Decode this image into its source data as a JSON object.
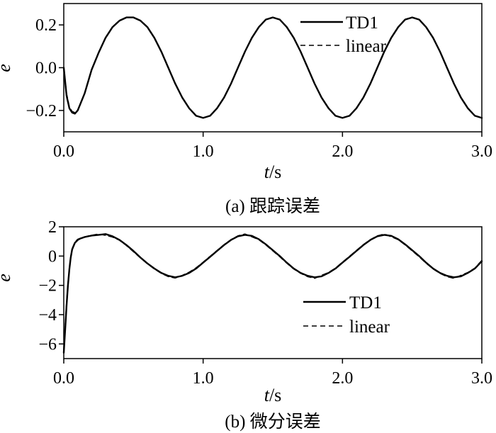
{
  "chart_data": [
    {
      "type": "line",
      "caption": "(a) 跟踪误差",
      "xlabel_italic": "t",
      "xlabel_rest": "/s",
      "ylabel": "e",
      "xlim": [
        0.0,
        3.0
      ],
      "ylim": [
        -0.3,
        0.3
      ],
      "xticks": [
        {
          "v": 0.0,
          "label": "0.0"
        },
        {
          "v": 1.0,
          "label": "1.0"
        },
        {
          "v": 2.0,
          "label": "2.0"
        },
        {
          "v": 3.0,
          "label": "3.0"
        }
      ],
      "yticks": [
        {
          "v": 0.2,
          "label": "0.2"
        },
        {
          "v": 0.0,
          "label": "0.0"
        },
        {
          "v": -0.2,
          "label": "−0.2"
        }
      ],
      "legend_position": "top-right",
      "series": [
        {
          "name": "TD1",
          "style": "solid",
          "color": "#000000",
          "x": [
            0.0,
            0.02,
            0.04,
            0.06,
            0.08,
            0.1,
            0.15,
            0.2,
            0.25,
            0.3,
            0.35,
            0.4,
            0.45,
            0.5,
            0.55,
            0.6,
            0.65,
            0.7,
            0.75,
            0.8,
            0.85,
            0.9,
            0.95,
            1.0,
            1.05,
            1.1,
            1.15,
            1.2,
            1.25,
            1.3,
            1.35,
            1.4,
            1.45,
            1.5,
            1.55,
            1.6,
            1.65,
            1.7,
            1.75,
            1.8,
            1.85,
            1.9,
            1.95,
            2.0,
            2.05,
            2.1,
            2.15,
            2.2,
            2.25,
            2.3,
            2.35,
            2.4,
            2.45,
            2.5,
            2.55,
            2.6,
            2.65,
            2.7,
            2.75,
            2.8,
            2.85,
            2.9,
            2.95,
            3.0
          ],
          "y": [
            0.0,
            -0.13,
            -0.19,
            -0.21,
            -0.215,
            -0.2,
            -0.12,
            -0.01,
            0.07,
            0.14,
            0.19,
            0.22,
            0.235,
            0.235,
            0.22,
            0.19,
            0.14,
            0.075,
            0.0,
            -0.075,
            -0.14,
            -0.19,
            -0.225,
            -0.235,
            -0.225,
            -0.19,
            -0.14,
            -0.075,
            0.0,
            0.075,
            0.14,
            0.19,
            0.225,
            0.235,
            0.225,
            0.19,
            0.14,
            0.075,
            0.0,
            -0.075,
            -0.14,
            -0.19,
            -0.225,
            -0.235,
            -0.225,
            -0.19,
            -0.14,
            -0.075,
            0.0,
            0.075,
            0.14,
            0.19,
            0.225,
            0.235,
            0.225,
            0.19,
            0.14,
            0.075,
            0.0,
            -0.075,
            -0.14,
            -0.19,
            -0.225,
            -0.235
          ]
        },
        {
          "name": "linear",
          "style": "dashed",
          "color": "#000000",
          "x": [
            0.0,
            0.02,
            0.04,
            0.06,
            0.08,
            0.1,
            0.15,
            0.2,
            0.25,
            0.3,
            0.35,
            0.4,
            0.45,
            0.5,
            0.55,
            0.6,
            0.65,
            0.7,
            0.75,
            0.8,
            0.85,
            0.9,
            0.95,
            1.0,
            1.05,
            1.1,
            1.15,
            1.2,
            1.25,
            1.3,
            1.35,
            1.4,
            1.45,
            1.5,
            1.55,
            1.6,
            1.65,
            1.7,
            1.75,
            1.8,
            1.85,
            1.9,
            1.95,
            2.0,
            2.05,
            2.1,
            2.15,
            2.2,
            2.25,
            2.3,
            2.35,
            2.4,
            2.45,
            2.5,
            2.55,
            2.6,
            2.65,
            2.7,
            2.75,
            2.8,
            2.85,
            2.9,
            2.95,
            3.0
          ],
          "y": [
            0.0,
            -0.12,
            -0.185,
            -0.205,
            -0.21,
            -0.198,
            -0.118,
            -0.008,
            0.072,
            0.141,
            0.191,
            0.221,
            0.236,
            0.236,
            0.221,
            0.191,
            0.141,
            0.076,
            0.001,
            -0.074,
            -0.139,
            -0.189,
            -0.224,
            -0.234,
            -0.224,
            -0.189,
            -0.139,
            -0.074,
            0.001,
            0.076,
            0.141,
            0.191,
            0.226,
            0.236,
            0.226,
            0.191,
            0.141,
            0.076,
            0.001,
            -0.074,
            -0.139,
            -0.189,
            -0.224,
            -0.234,
            -0.224,
            -0.189,
            -0.139,
            -0.074,
            0.001,
            0.076,
            0.141,
            0.191,
            0.226,
            0.236,
            0.226,
            0.191,
            0.141,
            0.076,
            0.001,
            -0.074,
            -0.139,
            -0.189,
            -0.224,
            -0.234
          ]
        }
      ]
    },
    {
      "type": "line",
      "caption": "(b) 微分误差",
      "xlabel_italic": "t",
      "xlabel_rest": "/s",
      "ylabel": "ė",
      "xlim": [
        0.0,
        3.0
      ],
      "ylim": [
        -7.0,
        2.0
      ],
      "xticks": [
        {
          "v": 0.0,
          "label": "0.0"
        },
        {
          "v": 1.0,
          "label": "1.0"
        },
        {
          "v": 2.0,
          "label": "2.0"
        },
        {
          "v": 3.0,
          "label": "3.0"
        }
      ],
      "yticks": [
        {
          "v": 2,
          "label": "2"
        },
        {
          "v": 0,
          "label": "0"
        },
        {
          "v": -2,
          "label": "−2"
        },
        {
          "v": -4,
          "label": "−4"
        },
        {
          "v": -6,
          "label": "−6"
        }
      ],
      "legend_position": "bottom-right",
      "series": [
        {
          "name": "TD1",
          "style": "solid",
          "color": "#000000",
          "x": [
            0.0,
            0.01,
            0.02,
            0.03,
            0.04,
            0.05,
            0.06,
            0.08,
            0.1,
            0.12,
            0.15,
            0.2,
            0.25,
            0.3,
            0.35,
            0.4,
            0.45,
            0.5,
            0.55,
            0.6,
            0.65,
            0.7,
            0.75,
            0.8,
            0.85,
            0.9,
            0.95,
            1.0,
            1.05,
            1.1,
            1.15,
            1.2,
            1.25,
            1.3,
            1.35,
            1.4,
            1.45,
            1.5,
            1.55,
            1.6,
            1.65,
            1.7,
            1.75,
            1.8,
            1.85,
            1.9,
            1.95,
            2.0,
            2.05,
            2.1,
            2.15,
            2.2,
            2.25,
            2.3,
            2.35,
            2.4,
            2.45,
            2.5,
            2.55,
            2.6,
            2.65,
            2.7,
            2.75,
            2.8,
            2.85,
            2.9,
            2.95,
            3.0
          ],
          "y": [
            -6.6,
            -5.0,
            -3.4,
            -2.0,
            -0.9,
            -0.1,
            0.45,
            0.9,
            1.1,
            1.2,
            1.3,
            1.4,
            1.45,
            1.5,
            1.35,
            1.1,
            0.75,
            0.35,
            -0.1,
            -0.5,
            -0.85,
            -1.15,
            -1.35,
            -1.45,
            -1.35,
            -1.15,
            -0.85,
            -0.45,
            -0.05,
            0.35,
            0.75,
            1.1,
            1.35,
            1.45,
            1.38,
            1.15,
            0.8,
            0.4,
            0.0,
            -0.45,
            -0.85,
            -1.15,
            -1.35,
            -1.45,
            -1.38,
            -1.15,
            -0.85,
            -0.45,
            -0.05,
            0.35,
            0.75,
            1.1,
            1.35,
            1.45,
            1.38,
            1.15,
            0.8,
            0.4,
            0.0,
            -0.45,
            -0.85,
            -1.15,
            -1.35,
            -1.45,
            -1.38,
            -1.15,
            -0.85,
            -0.35
          ]
        },
        {
          "name": "linear",
          "style": "dashed",
          "color": "#000000",
          "x": [
            0.0,
            0.01,
            0.02,
            0.03,
            0.04,
            0.05,
            0.06,
            0.08,
            0.1,
            0.12,
            0.15,
            0.2,
            0.25,
            0.3,
            0.35,
            0.4,
            0.45,
            0.5,
            0.55,
            0.6,
            0.65,
            0.7,
            0.75,
            0.8,
            0.85,
            0.9,
            0.95,
            1.0,
            1.05,
            1.1,
            1.15,
            1.2,
            1.25,
            1.3,
            1.35,
            1.4,
            1.45,
            1.5,
            1.55,
            1.6,
            1.65,
            1.7,
            1.75,
            1.8,
            1.85,
            1.9,
            1.95,
            2.0,
            2.05,
            2.1,
            2.15,
            2.2,
            2.25,
            2.3,
            2.35,
            2.4,
            2.45,
            2.5,
            2.55,
            2.6,
            2.65,
            2.7,
            2.75,
            2.8,
            2.85,
            2.9,
            2.95,
            3.0
          ],
          "y": [
            -6.4,
            -4.8,
            -3.2,
            -1.9,
            -0.85,
            -0.05,
            0.5,
            0.95,
            1.15,
            1.22,
            1.32,
            1.42,
            1.5,
            1.42,
            1.3,
            1.08,
            0.72,
            0.3,
            -0.12,
            -0.52,
            -0.88,
            -1.18,
            -1.4,
            -1.5,
            -1.32,
            -1.1,
            -0.8,
            -0.42,
            -0.02,
            0.38,
            0.78,
            1.12,
            1.38,
            1.5,
            1.32,
            1.12,
            0.76,
            0.36,
            -0.04,
            -0.48,
            -0.88,
            -1.18,
            -1.4,
            -1.52,
            -1.32,
            -1.12,
            -0.82,
            -0.42,
            -0.02,
            0.38,
            0.78,
            1.12,
            1.38,
            1.5,
            1.32,
            1.12,
            0.76,
            0.36,
            -0.04,
            -0.48,
            -0.88,
            -1.18,
            -1.4,
            -1.52,
            -1.32,
            -1.12,
            -0.82,
            -0.3
          ]
        }
      ]
    }
  ]
}
